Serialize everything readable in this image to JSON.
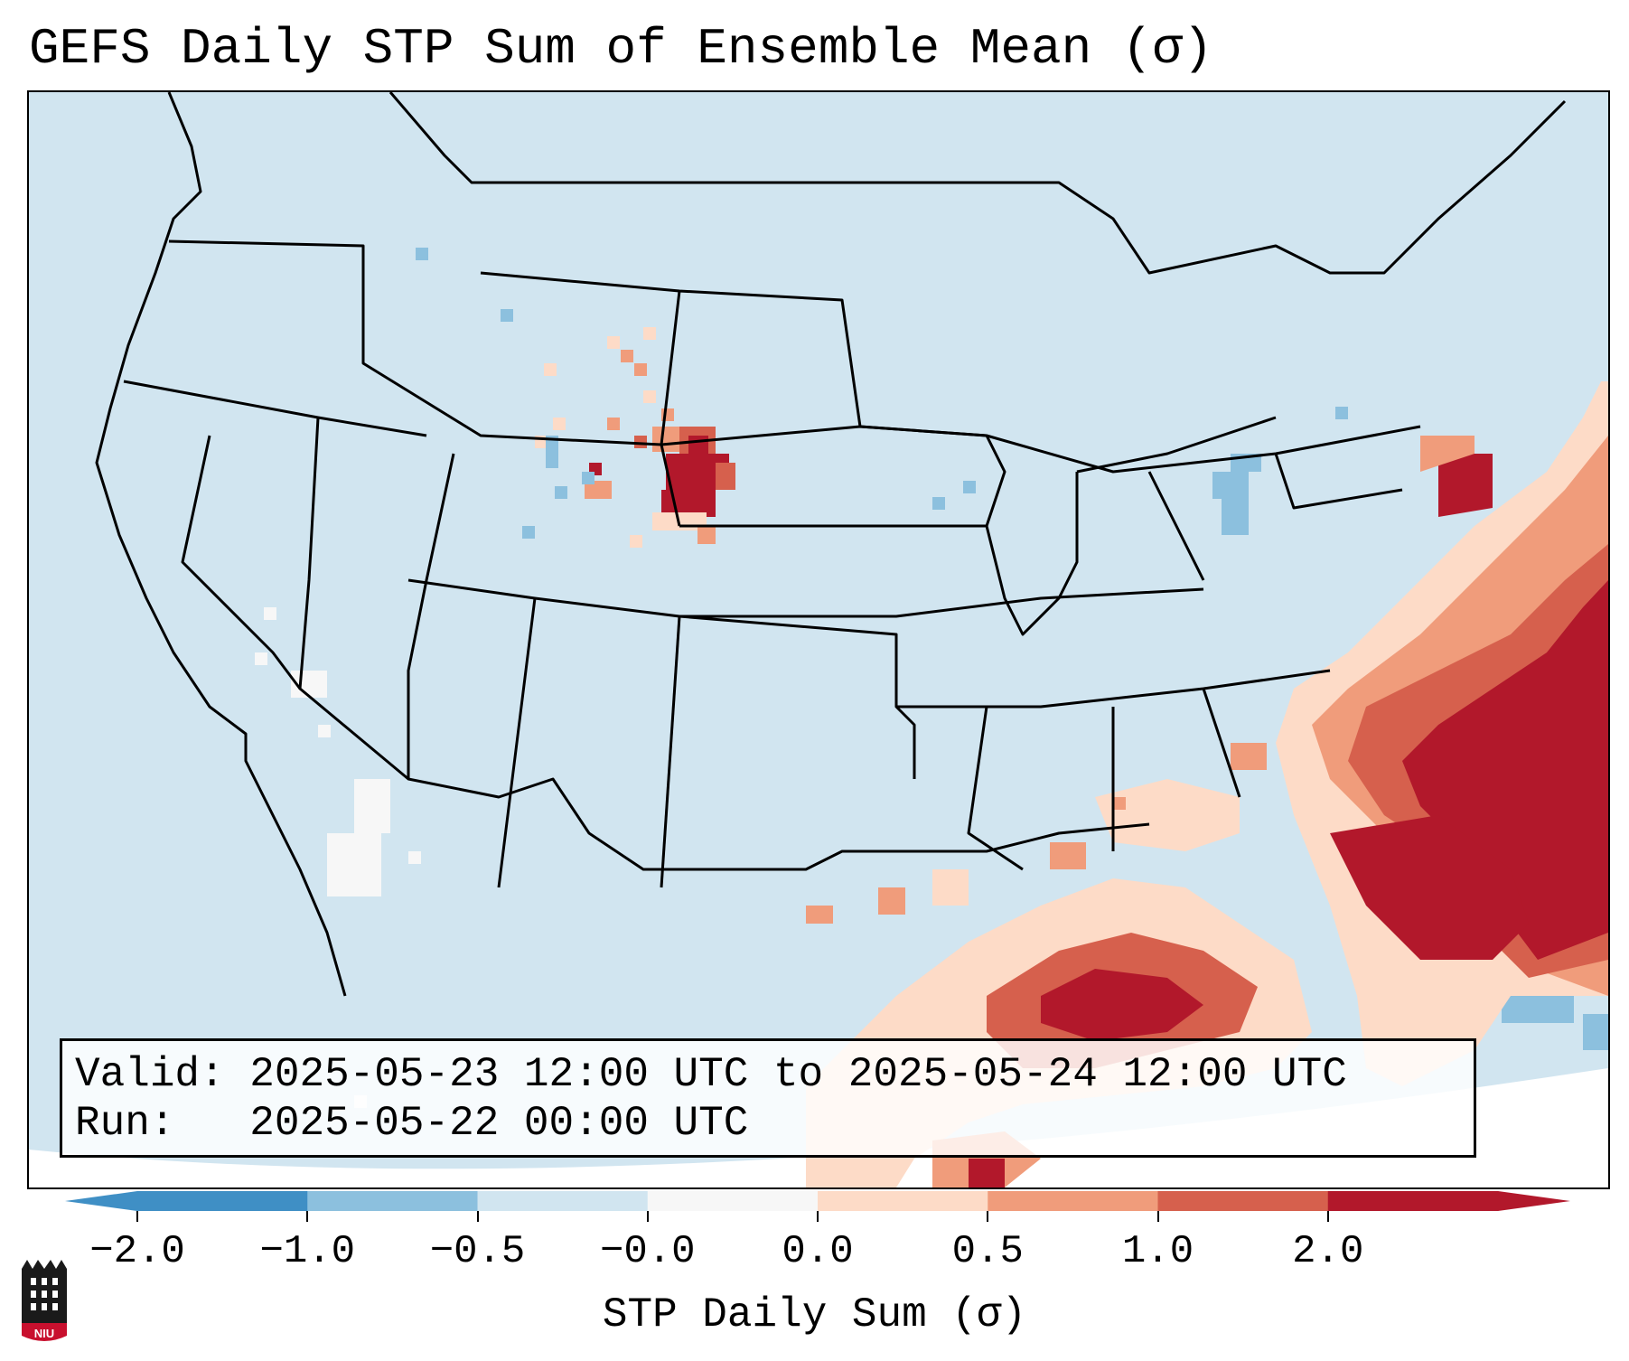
{
  "title": "GEFS Daily STP Sum of Ensemble Mean (σ)",
  "info": {
    "valid_label": "Valid:",
    "valid_value": "2025-05-23 12:00 UTC to 2025-05-24 12:00 UTC",
    "run_label": "Run:",
    "run_value": "2025-05-22 00:00 UTC"
  },
  "colorbar": {
    "label": "STP Daily Sum (σ)",
    "ticks": [
      "−2.0",
      "−1.0",
      "−0.5",
      "−0.0",
      "0.0",
      "0.5",
      "1.0",
      "2.0"
    ],
    "colors": [
      "#3f8fc5",
      "#8cc0de",
      "#d1e5f0",
      "#f7f7f7",
      "#fddbc7",
      "#f09c7b",
      "#d6604d",
      "#b2182b"
    ],
    "extend": "both"
  },
  "map": {
    "region": "Contiguous United States",
    "background_color": "#d1e5f0",
    "features": [
      "High Plains positive anomaly (Wyoming/Nebraska border)",
      "Strong positive anomaly over western Atlantic and Gulf of Mexico",
      "Weak negative anomalies over Colorado and Virginia"
    ]
  },
  "logo": {
    "text": "NIU"
  }
}
